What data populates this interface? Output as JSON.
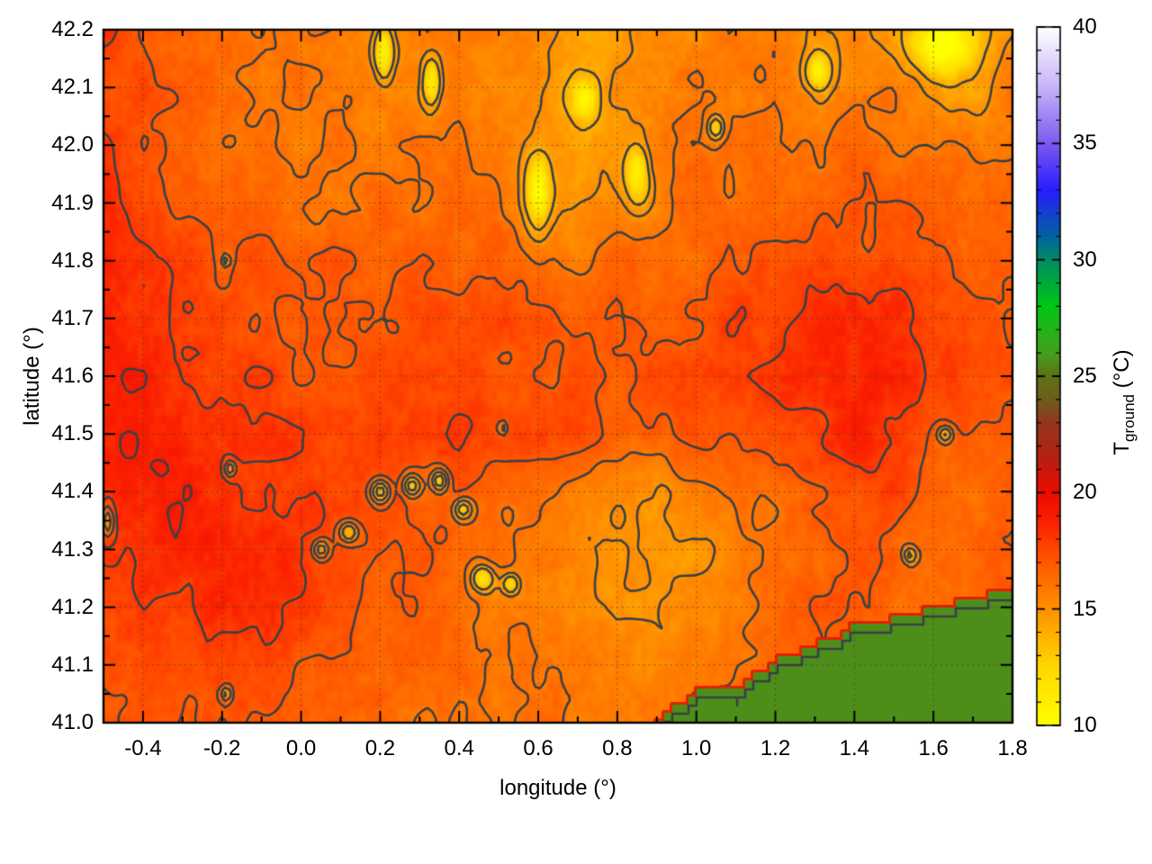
{
  "figure": {
    "background": "#ffffff"
  },
  "chart_data": {
    "type": "heatmap",
    "title": "",
    "xlabel": "longitude (°)",
    "ylabel": "latitude (°)",
    "xlim": [
      -0.5,
      1.8
    ],
    "ylim": [
      41.0,
      42.2
    ],
    "grid": true,
    "xticks": {
      "values": [
        -0.4,
        -0.2,
        0.0,
        0.2,
        0.4,
        0.6,
        0.8,
        1.0,
        1.2,
        1.4,
        1.6,
        1.8
      ],
      "labels": [
        "-0.4",
        "-0.2",
        "0.0",
        "0.2",
        "0.4",
        "0.6",
        "0.8",
        "1.0",
        "1.2",
        "1.4",
        "1.6",
        "1.8"
      ],
      "minor_step": 0.1
    },
    "yticks": {
      "values": [
        41.0,
        41.1,
        41.2,
        41.3,
        41.4,
        41.5,
        41.6,
        41.7,
        41.8,
        41.9,
        42.0,
        42.1,
        42.2
      ],
      "labels": [
        "41.0",
        "41.1",
        "41.2",
        "41.3",
        "41.4",
        "41.5",
        "41.6",
        "41.7",
        "41.8",
        "41.9",
        "42.0",
        "42.1",
        "42.2"
      ],
      "minor_step": 0.05
    },
    "colorbar": {
      "title_main": "T",
      "title_sub": "ground",
      "title_unit": " (°C)",
      "min": 10,
      "max": 40,
      "ticks": [
        10,
        15,
        20,
        25,
        30,
        35,
        40
      ],
      "tick_labels": [
        "10",
        "15",
        "20",
        "25",
        "30",
        "35",
        "40"
      ],
      "minor_step": 1,
      "palette": [
        [
          10.0,
          "#ffff00"
        ],
        [
          12.5,
          "#ffd800"
        ],
        [
          15.0,
          "#ff9000"
        ],
        [
          17.5,
          "#ff4a00"
        ],
        [
          18.7,
          "#fb2100"
        ],
        [
          20.0,
          "#ee0a00"
        ],
        [
          21.5,
          "#b52112"
        ],
        [
          23.0,
          "#93361f"
        ],
        [
          24.0,
          "#6e5e1e"
        ],
        [
          25.0,
          "#5c7314"
        ],
        [
          26.0,
          "#44a01e"
        ],
        [
          28.0,
          "#00c814"
        ],
        [
          30.0,
          "#008c64"
        ],
        [
          31.0,
          "#0064a0"
        ],
        [
          33.0,
          "#281eff"
        ],
        [
          35.0,
          "#7d5af0"
        ],
        [
          37.5,
          "#c9b6fa"
        ],
        [
          40.0,
          "#ffffff"
        ]
      ]
    },
    "contour": {
      "levels": [
        14,
        15,
        16,
        17,
        18,
        19
      ],
      "color": "#3b4046"
    },
    "sea": {
      "value_c": 25.6,
      "fringe_color": "#e62000",
      "outline_color": "#3b4046",
      "coast": [
        [
          0.9,
          41.0
        ],
        [
          0.93,
          41.025
        ],
        [
          0.98,
          41.03
        ],
        [
          1.01,
          41.055
        ],
        [
          1.06,
          41.065
        ],
        [
          1.1,
          41.05
        ],
        [
          1.14,
          41.075
        ],
        [
          1.2,
          41.11
        ],
        [
          1.27,
          41.125
        ],
        [
          1.33,
          41.14
        ],
        [
          1.4,
          41.165
        ],
        [
          1.47,
          41.175
        ],
        [
          1.54,
          41.19
        ],
        [
          1.62,
          41.2
        ],
        [
          1.7,
          41.215
        ],
        [
          1.8,
          41.23
        ]
      ]
    },
    "grid_lon_start": -0.5,
    "grid_lat_start": 42.2,
    "grid_step": 0.1,
    "temps_c": [
      [
        18.3,
        17.2,
        16.2,
        16.0,
        15.9,
        15.8,
        15.7,
        15.4,
        15.6,
        15.6,
        15.8,
        15.4,
        14.8,
        14.6,
        15.2,
        15.6,
        16.0,
        15.8,
        15.2,
        15.6,
        14.8,
        13.5,
        13.8,
        15.2
      ],
      [
        17.6,
        17.0,
        16.4,
        16.1,
        15.9,
        15.8,
        15.7,
        15.6,
        15.8,
        15.7,
        15.6,
        14.8,
        14.2,
        14.8,
        15.2,
        15.6,
        15.9,
        15.7,
        14.6,
        15.4,
        15.8,
        15.0,
        14.6,
        15.4
      ],
      [
        18.0,
        17.3,
        16.7,
        16.4,
        16.1,
        16.0,
        15.9,
        15.9,
        16.0,
        16.1,
        16.0,
        15.2,
        14.6,
        15.0,
        15.6,
        16.1,
        16.3,
        16.1,
        15.8,
        16.2,
        16.4,
        15.8,
        15.4,
        15.8
      ],
      [
        18.3,
        17.8,
        17.2,
        16.7,
        16.4,
        16.2,
        16.1,
        16.2,
        16.3,
        16.4,
        16.2,
        14.8,
        15.0,
        15.4,
        15.8,
        16.3,
        16.6,
        16.5,
        16.4,
        16.7,
        16.8,
        16.5,
        16.2,
        16.3
      ],
      [
        18.5,
        18.2,
        17.6,
        17.2,
        17.0,
        16.9,
        16.9,
        17.0,
        16.8,
        16.7,
        16.6,
        16.2,
        16.0,
        16.3,
        16.6,
        16.8,
        17.0,
        17.2,
        17.4,
        17.6,
        17.4,
        17.0,
        16.7,
        16.6
      ],
      [
        18.6,
        18.4,
        18.0,
        17.6,
        17.3,
        17.1,
        17.0,
        17.2,
        17.3,
        17.4,
        17.3,
        17.1,
        17.0,
        16.9,
        17.1,
        17.3,
        17.5,
        17.8,
        18.2,
        18.8,
        18.4,
        17.6,
        17.1,
        16.9
      ],
      [
        18.8,
        18.6,
        18.3,
        17.9,
        17.6,
        17.4,
        17.4,
        17.6,
        17.7,
        17.7,
        17.5,
        17.3,
        17.2,
        17.0,
        17.2,
        17.4,
        17.7,
        18.0,
        18.5,
        19.0,
        18.6,
        17.8,
        17.2,
        17.0
      ],
      [
        19.0,
        18.8,
        18.6,
        18.3,
        17.9,
        17.7,
        17.8,
        17.8,
        17.9,
        17.9,
        17.8,
        17.5,
        17.2,
        16.8,
        16.8,
        17.0,
        17.3,
        17.7,
        18.2,
        18.6,
        18.2,
        17.4,
        16.9,
        16.8
      ],
      [
        18.8,
        19.0,
        18.8,
        18.6,
        18.3,
        18.0,
        17.8,
        17.6,
        17.4,
        17.0,
        16.6,
        16.2,
        15.8,
        15.4,
        15.2,
        15.4,
        15.8,
        16.4,
        17.0,
        17.6,
        17.4,
        16.8,
        16.4,
        16.5
      ],
      [
        18.4,
        18.6,
        18.8,
        18.6,
        18.4,
        18.2,
        17.9,
        17.4,
        16.9,
        16.4,
        16.0,
        15.6,
        15.2,
        14.8,
        14.7,
        14.9,
        15.3,
        15.9,
        16.5,
        17.0,
        16.8,
        16.2,
        16.2,
        16.6
      ],
      [
        17.6,
        17.9,
        18.2,
        18.3,
        18.1,
        17.8,
        17.4,
        17.0,
        16.6,
        16.2,
        15.9,
        15.6,
        15.4,
        15.2,
        15.2,
        15.5,
        16.0,
        16.4,
        16.8,
        16.9,
        16.6,
        16.3,
        16.5,
        16.8
      ],
      [
        17.0,
        17.2,
        17.5,
        17.7,
        17.6,
        17.3,
        17.0,
        16.8,
        16.5,
        16.2,
        16.0,
        15.8,
        15.6,
        15.5,
        15.6,
        15.9,
        16.2,
        16.5,
        16.7,
        16.6,
        16.4,
        16.4,
        16.6,
        16.9
      ],
      [
        16.8,
        16.9,
        17.1,
        17.3,
        17.3,
        17.1,
        16.9,
        16.7,
        16.5,
        16.3,
        16.1,
        15.9,
        15.8,
        15.8,
        16.0,
        16.2,
        16.4,
        16.6,
        16.6,
        16.5,
        16.4,
        16.5,
        16.7,
        17.0
      ]
    ],
    "cold_spots": [
      [
        0.6,
        41.92,
        5.0,
        0.03,
        0.06
      ],
      [
        0.85,
        41.95,
        4.5,
        0.03,
        0.05
      ],
      [
        0.72,
        42.08,
        4.0,
        0.03,
        0.03
      ],
      [
        0.21,
        42.16,
        4.5,
        0.022,
        0.045
      ],
      [
        0.33,
        42.11,
        4.0,
        0.022,
        0.04
      ],
      [
        1.31,
        42.13,
        4.0,
        0.03,
        0.03
      ],
      [
        1.62,
        42.17,
        5.0,
        0.07,
        0.045
      ],
      [
        1.05,
        42.03,
        3.0,
        0.022,
        0.022
      ],
      [
        -0.18,
        41.44,
        3.0,
        0.015,
        0.015
      ],
      [
        -0.49,
        41.35,
        3.5,
        0.018,
        0.03
      ],
      [
        -0.19,
        41.05,
        2.8,
        0.015,
        0.015
      ],
      [
        -0.19,
        41.8,
        2.5,
        0.012,
        0.012
      ],
      [
        0.05,
        41.3,
        3.5,
        0.022,
        0.018
      ],
      [
        0.12,
        41.33,
        4.0,
        0.025,
        0.02
      ],
      [
        0.2,
        41.4,
        4.5,
        0.028,
        0.022
      ],
      [
        0.28,
        41.41,
        4.0,
        0.025,
        0.02
      ],
      [
        0.35,
        41.42,
        4.0,
        0.022,
        0.02
      ],
      [
        0.41,
        41.37,
        3.5,
        0.025,
        0.02
      ],
      [
        0.46,
        41.25,
        4.0,
        0.028,
        0.022
      ],
      [
        0.53,
        41.24,
        3.5,
        0.022,
        0.018
      ],
      [
        1.63,
        41.5,
        3.0,
        0.02,
        0.015
      ],
      [
        1.54,
        41.29,
        3.0,
        0.018,
        0.015
      ],
      [
        0.51,
        41.51,
        2.2,
        0.012,
        0.012
      ]
    ]
  }
}
